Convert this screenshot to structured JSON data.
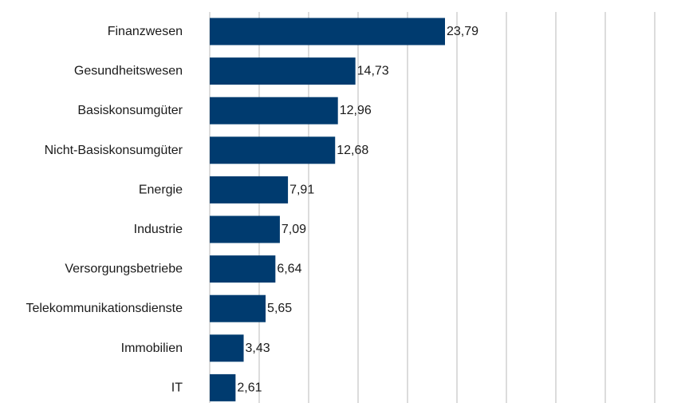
{
  "chart_data": {
    "type": "bar",
    "orientation": "horizontal",
    "categories": [
      "Finanzwesen",
      "Gesundheitswesen",
      "Basiskonsumgüter",
      "Nicht-Basiskonsumgüter",
      "Energie",
      "Industrie",
      "Versorgungsbetriebe",
      "Telekommunikationsdienste",
      "Immobilien",
      "IT"
    ],
    "values": [
      23.79,
      14.73,
      12.96,
      12.68,
      7.91,
      7.09,
      6.64,
      5.65,
      3.43,
      2.61
    ],
    "value_labels": [
      "23,79",
      "14,73",
      "12,96",
      "12,68",
      "7,91",
      "7,09",
      "6,64",
      "5,65",
      "3,43",
      "2,61"
    ],
    "xlim": [
      0,
      45
    ],
    "x_grid_step": 5,
    "grid": true,
    "title": "",
    "xlabel": "",
    "ylabel": "",
    "bar_color": "#003b6f",
    "grid_color": "#d0d0d0"
  }
}
